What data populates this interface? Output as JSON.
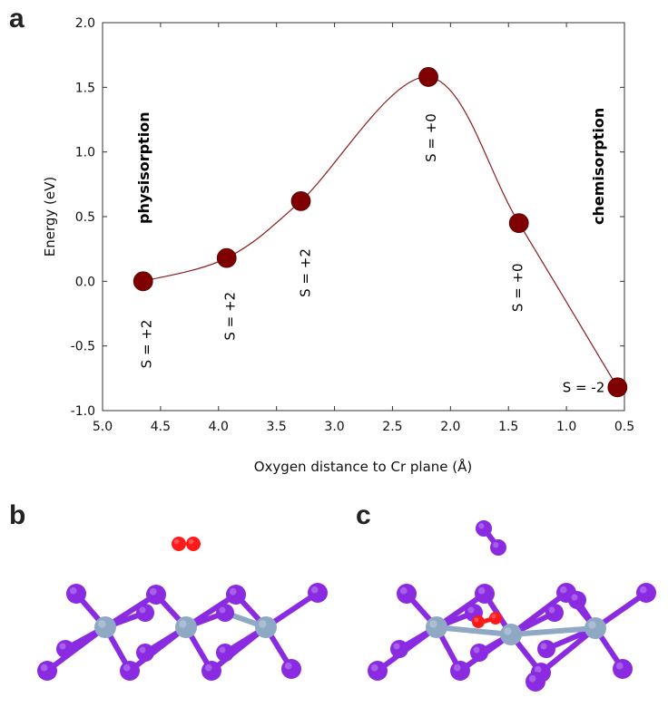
{
  "panels": {
    "a": "a",
    "b": "b",
    "c": "c"
  },
  "chart_data": {
    "type": "line",
    "xlabel": "Oxygen distance to Cr plane (Å)",
    "ylabel": "Energy (eV)",
    "xlim": [
      5.0,
      0.5
    ],
    "ylim": [
      -1.0,
      2.0
    ],
    "x_reversed": true,
    "xticks": [
      "5.0",
      "4.5",
      "4.0",
      "3.5",
      "3.0",
      "2.5",
      "2.0",
      "1.5",
      "1.0",
      "0.5"
    ],
    "yticks": [
      "-1.0",
      "-0.5",
      "0.0",
      "0.5",
      "1.0",
      "1.5",
      "2.0"
    ],
    "grid": false,
    "series": [
      {
        "x": [
          4.65,
          3.93,
          3.29,
          2.19,
          1.41,
          0.56
        ],
        "y": [
          0.0,
          0.18,
          0.62,
          1.58,
          0.45,
          -0.82
        ],
        "labels": [
          "S = +2",
          "S = +2",
          "S = +2",
          "S = +0",
          "S = +0",
          "S = -2"
        ]
      }
    ],
    "annotations": [
      "physisorption",
      "chemisorption"
    ],
    "colors": {
      "marker": "#7f0000",
      "curve": "#8b1a1a"
    }
  },
  "molecule_colors": {
    "iodine": "#8a2be2",
    "chromium": "#8fa9c4",
    "oxygen": "#ff1a1a"
  }
}
